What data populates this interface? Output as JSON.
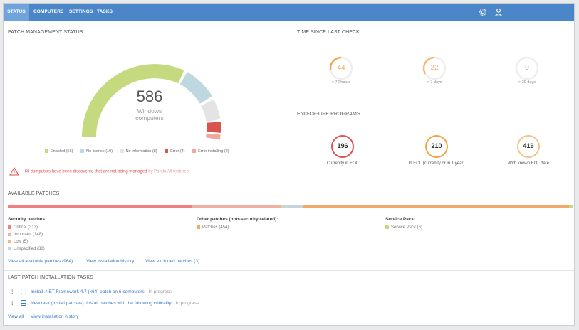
{
  "nav": {
    "tabs": [
      "STATUS",
      "COMPUTERS",
      "SETTINGS",
      "TASKS"
    ]
  },
  "patch_status": {
    "title": "PATCH MANAGEMENT STATUS",
    "total": "586",
    "total_label_1": "Windows",
    "total_label_2": "computers",
    "legend": [
      "Enabled (56)",
      "No license (10)",
      "No information (8)",
      "Error (4)",
      "Error installing (2)"
    ],
    "colors": {
      "enabled": "#c5d97e",
      "no_license": "#bfd8df",
      "no_information": "#e4e4e4",
      "error": "#d9534f",
      "error_installing": "#f0a89a"
    },
    "warning": "60 computers have been discovered that are not being managed",
    "warning_link": "by Panda All features."
  },
  "time_since": {
    "title": "TIME SINCE LAST CHECK",
    "items": [
      {
        "value": "44",
        "label": "> 72 hours"
      },
      {
        "value": "22",
        "label": "> 7 days"
      },
      {
        "value": "0",
        "label": "> 30 days"
      }
    ]
  },
  "eol": {
    "title": "END-OF-LIFE PROGRAMS",
    "items": [
      {
        "value": "196",
        "label": "Currently in EOL"
      },
      {
        "value": "210",
        "label": "In EOL (currently or in 1 year)"
      },
      {
        "value": "419",
        "label": "With known EOL date"
      }
    ]
  },
  "available": {
    "title": "AVAILABLE PATCHES",
    "security_title": "Security patches:",
    "security": [
      "Critical (313)",
      "Important (148)",
      "Low (5)",
      "Unspecified (38)"
    ],
    "other_title": "Other patches (non-security-related):",
    "other": [
      "Patches (454)"
    ],
    "sp_title": "Service Pack:",
    "sp": [
      "Service Pack (6)"
    ],
    "links": [
      "View all available patches (964)",
      "View installation history",
      "View excluded patches (3)"
    ]
  },
  "tasks": {
    "title": "LAST PATCH INSTALLATION TASKS",
    "items": [
      {
        "name": "Install .NET Framework 4.7 (x64) patch on 6 computers",
        "status": "In progress"
      },
      {
        "name": "New task (Install patches): Install patches with the following criticality",
        "status": "In progress"
      }
    ],
    "links": [
      "View all",
      "View installation history"
    ]
  }
}
